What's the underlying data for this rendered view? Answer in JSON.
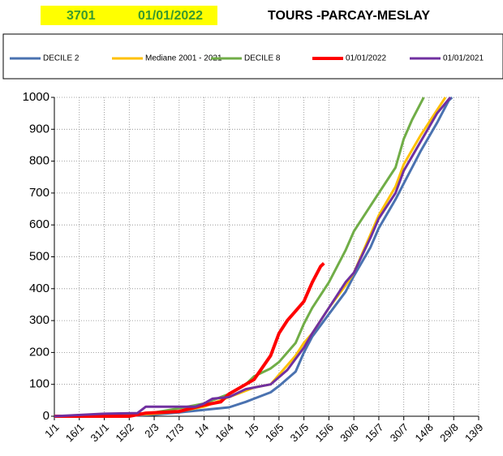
{
  "chart_data": {
    "type": "line",
    "station_code": "3701",
    "date": "01/01/2022",
    "title": "TOURS -PARCAY-MESLAY",
    "xlim": [
      1,
      256
    ],
    "xticks": [
      {
        "value": 1,
        "label": "1/1"
      },
      {
        "value": 16,
        "label": "16/1"
      },
      {
        "value": 31,
        "label": "31/1"
      },
      {
        "value": 46,
        "label": "15/2"
      },
      {
        "value": 61,
        "label": "2/3"
      },
      {
        "value": 76,
        "label": "17/3"
      },
      {
        "value": 91,
        "label": "1/4"
      },
      {
        "value": 106,
        "label": "16/4"
      },
      {
        "value": 121,
        "label": "1/5"
      },
      {
        "value": 136,
        "label": "16/5"
      },
      {
        "value": 151,
        "label": "31/5"
      },
      {
        "value": 166,
        "label": "15/6"
      },
      {
        "value": 181,
        "label": "30/6"
      },
      {
        "value": 196,
        "label": "15/7"
      },
      {
        "value": 211,
        "label": "30/7"
      },
      {
        "value": 226,
        "label": "14/8"
      },
      {
        "value": 241,
        "label": "29/8"
      },
      {
        "value": 256,
        "label": "13/9"
      }
    ],
    "ylim": [
      0,
      1000
    ],
    "yticks": [
      0,
      100,
      200,
      300,
      400,
      500,
      600,
      700,
      800,
      900,
      1000
    ],
    "grid": true,
    "series": [
      {
        "name": "DECILE 2",
        "color": "#4a72b0",
        "x": [
          1,
          46,
          61,
          76,
          91,
          106,
          116,
          121,
          131,
          136,
          146,
          151,
          156,
          166,
          176,
          181,
          191,
          196,
          206,
          211,
          221,
          231,
          238,
          240
        ],
        "values": [
          0,
          2,
          5,
          12,
          20,
          28,
          45,
          55,
          75,
          95,
          140,
          200,
          250,
          320,
          390,
          440,
          530,
          590,
          680,
          730,
          830,
          920,
          990,
          1000
        ]
      },
      {
        "name": "Mediane 2001 - 2021",
        "color": "#ffc000",
        "x": [
          1,
          46,
          61,
          76,
          91,
          106,
          116,
          121,
          131,
          136,
          146,
          151,
          156,
          166,
          176,
          181,
          191,
          196,
          206,
          211,
          221,
          231,
          236
        ],
        "values": [
          0,
          3,
          8,
          15,
          30,
          60,
          80,
          90,
          100,
          130,
          190,
          230,
          260,
          340,
          410,
          450,
          570,
          630,
          720,
          790,
          880,
          960,
          1000
        ]
      },
      {
        "name": "DECILE 8",
        "color": "#70ad47",
        "x": [
          1,
          46,
          61,
          76,
          91,
          106,
          116,
          121,
          131,
          136,
          146,
          151,
          156,
          166,
          176,
          181,
          191,
          196,
          206,
          211,
          216,
          221,
          223
        ],
        "values": [
          0,
          5,
          12,
          25,
          40,
          70,
          100,
          125,
          150,
          170,
          230,
          290,
          340,
          420,
          520,
          580,
          660,
          700,
          780,
          870,
          930,
          980,
          1000
        ]
      },
      {
        "name": "01/01/2022",
        "color": "#ff0000",
        "x": [
          1,
          46,
          56,
          76,
          91,
          101,
          106,
          116,
          121,
          131,
          136,
          141,
          146,
          151,
          156,
          161,
          163
        ],
        "values": [
          0,
          0,
          10,
          15,
          35,
          45,
          70,
          100,
          115,
          190,
          260,
          300,
          330,
          360,
          420,
          470,
          480
        ]
      },
      {
        "name": "01/01/2021",
        "color": "#7030a0",
        "x": [
          1,
          31,
          51,
          56,
          86,
          91,
          96,
          106,
          116,
          121,
          131,
          141,
          151,
          156,
          166,
          176,
          181,
          191,
          196,
          206,
          211,
          221,
          231,
          239
        ],
        "values": [
          0,
          8,
          10,
          30,
          30,
          40,
          55,
          60,
          85,
          90,
          100,
          145,
          215,
          260,
          340,
          420,
          450,
          560,
          620,
          700,
          770,
          860,
          950,
          1000
        ]
      }
    ]
  }
}
